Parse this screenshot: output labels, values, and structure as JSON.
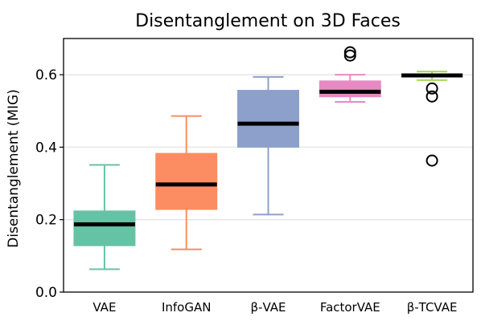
{
  "chart_data": {
    "type": "box",
    "title": "Disentanglement on 3D Faces",
    "xlabel": "",
    "ylabel": "Disentanglement (MIG)",
    "ylim": [
      0.0,
      0.7
    ],
    "yticks": [
      "0.0",
      "0.2",
      "0.4",
      "0.6"
    ],
    "ytick_values": [
      0.0,
      0.2,
      0.4,
      0.6
    ],
    "grid": "horizontal",
    "categories": [
      "VAE",
      "InfoGAN",
      "β-VAE",
      "FactorVAE",
      "β-TCVAE"
    ],
    "boxes": [
      {
        "category": "VAE",
        "whisker_low": 0.063,
        "q1": 0.128,
        "median": 0.187,
        "q3": 0.224,
        "whisker_high": 0.351,
        "outliers": [],
        "color": "#66c2a5"
      },
      {
        "category": "InfoGAN",
        "whisker_low": 0.118,
        "q1": 0.228,
        "median": 0.297,
        "q3": 0.383,
        "whisker_high": 0.486,
        "outliers": [],
        "color": "#fc8d62"
      },
      {
        "category": "β-VAE",
        "whisker_low": 0.214,
        "q1": 0.4,
        "median": 0.465,
        "q3": 0.557,
        "whisker_high": 0.594,
        "outliers": [],
        "color": "#8da0cb"
      },
      {
        "category": "FactorVAE",
        "whisker_low": 0.525,
        "q1": 0.539,
        "median": 0.553,
        "q3": 0.583,
        "whisker_high": 0.6,
        "outliers": [
          0.653,
          0.662
        ],
        "color": "#e78ac3"
      },
      {
        "category": "β-TCVAE",
        "whisker_low": 0.585,
        "q1": 0.595,
        "median": 0.598,
        "q3": 0.602,
        "whisker_high": 0.609,
        "outliers": [
          0.562,
          0.54,
          0.363
        ],
        "color": "#a6d854"
      }
    ],
    "median_color": "#000000"
  }
}
